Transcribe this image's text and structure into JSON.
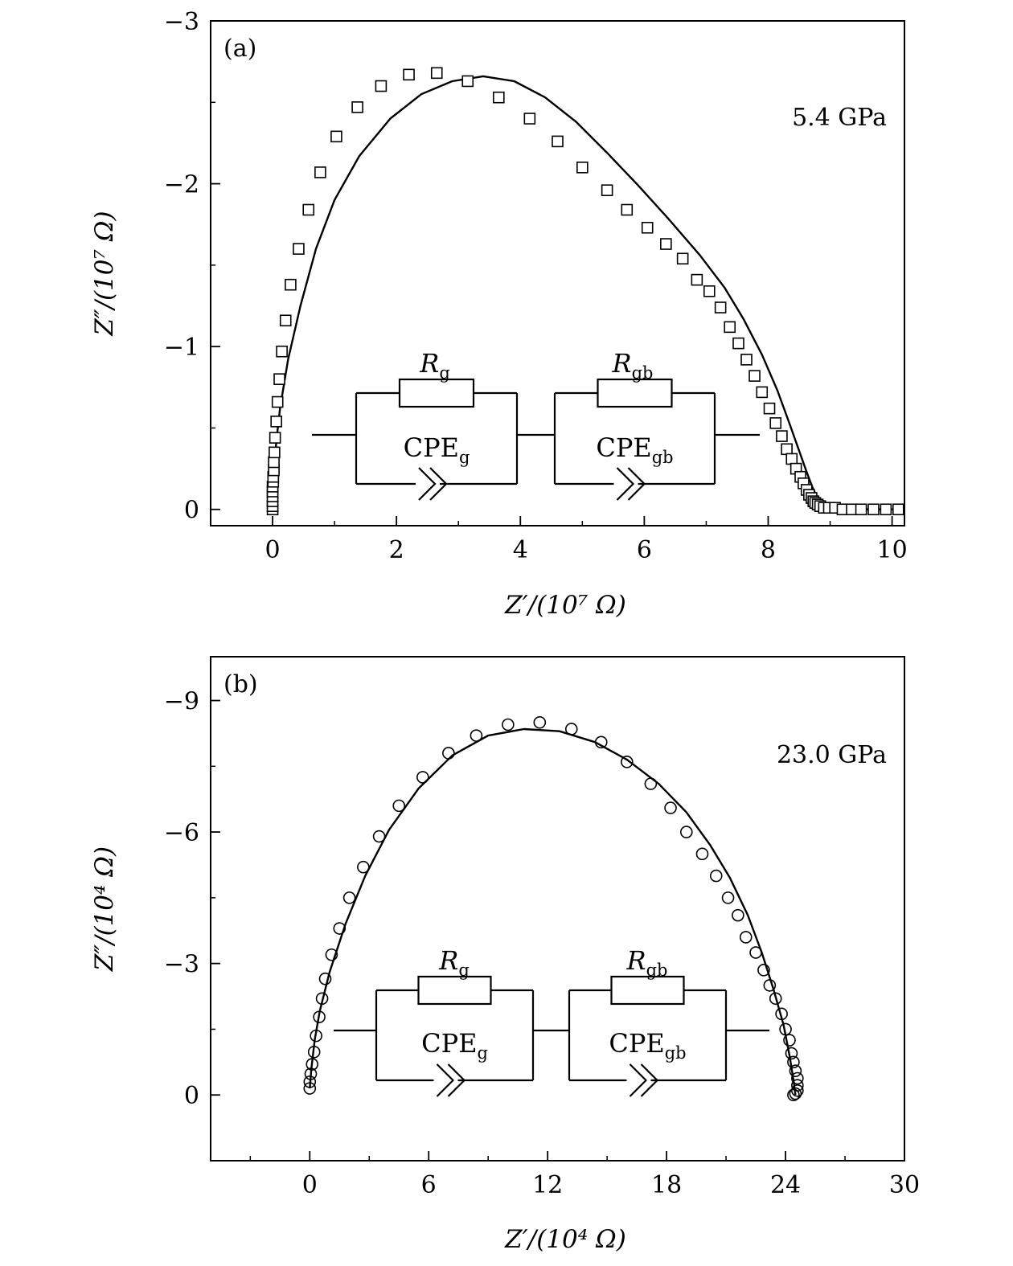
{
  "chart_data": [
    {
      "type": "scatter",
      "panel_label": "(a)",
      "annotation": "5.4 GPa",
      "xlabel": "Z′/(10⁷ Ω)",
      "ylabel": "Z″/(10⁷ Ω)",
      "xlim": [
        -1.0,
        10.2
      ],
      "ylim": [
        0.1,
        -3.0
      ],
      "xticks": [
        0,
        2,
        4,
        6,
        8,
        10
      ],
      "yticks": [
        0,
        -1,
        -2,
        -3
      ],
      "xtick_labels": [
        "0",
        "2",
        "4",
        "6",
        "8",
        "10"
      ],
      "ytick_labels": [
        "0",
        "−1",
        "−2",
        "−3"
      ],
      "marker": "square",
      "series": [
        {
          "kind": "measured",
          "x": [
            0.0,
            0.0,
            0.0,
            0.0,
            0.0,
            0.0,
            0.01,
            0.01,
            0.02,
            0.02,
            0.03,
            0.04,
            0.06,
            0.08,
            0.11,
            0.15,
            0.21,
            0.29,
            0.42,
            0.58,
            0.77,
            1.03,
            1.37,
            1.75,
            2.2,
            2.65,
            3.15,
            3.65,
            4.15,
            4.6,
            5.0,
            5.4,
            5.72,
            6.05,
            6.35,
            6.62,
            6.85,
            7.05,
            7.23,
            7.38,
            7.52,
            7.65,
            7.78,
            7.9,
            8.02,
            8.12,
            8.22,
            8.3,
            8.38,
            8.45,
            8.52,
            8.57,
            8.62,
            8.66,
            8.7,
            8.73,
            8.76,
            8.8,
            8.84,
            8.9,
            8.98,
            9.08,
            9.2,
            9.35,
            9.5,
            9.7,
            9.9,
            10.1
          ],
          "y": [
            0.0,
            -0.02,
            -0.05,
            -0.08,
            -0.11,
            -0.14,
            -0.17,
            -0.2,
            -0.24,
            -0.29,
            -0.35,
            -0.44,
            -0.54,
            -0.66,
            -0.8,
            -0.97,
            -1.16,
            -1.38,
            -1.6,
            -1.84,
            -2.07,
            -2.29,
            -2.47,
            -2.6,
            -2.67,
            -2.68,
            -2.63,
            -2.53,
            -2.4,
            -2.26,
            -2.1,
            -1.96,
            -1.84,
            -1.73,
            -1.63,
            -1.54,
            -1.41,
            -1.34,
            -1.24,
            -1.12,
            -1.02,
            -0.92,
            -0.82,
            -0.72,
            -0.62,
            -0.53,
            -0.45,
            -0.37,
            -0.31,
            -0.25,
            -0.2,
            -0.16,
            -0.12,
            -0.09,
            -0.07,
            -0.05,
            -0.04,
            -0.03,
            -0.02,
            -0.01,
            -0.01,
            -0.01,
            0.0,
            0.0,
            0.0,
            0.0,
            0.0,
            0.0
          ]
        },
        {
          "kind": "fit",
          "x": [
            0.0,
            0.02,
            0.06,
            0.12,
            0.25,
            0.45,
            0.7,
            1.0,
            1.4,
            1.9,
            2.4,
            2.9,
            3.4,
            3.9,
            4.4,
            4.9,
            5.4,
            5.9,
            6.4,
            6.9,
            7.3,
            7.6,
            7.9,
            8.15,
            8.35,
            8.5,
            8.62,
            8.72,
            8.8,
            8.88,
            8.95,
            9.05,
            9.2,
            9.5,
            9.8,
            10.1
          ],
          "y": [
            0.0,
            -0.22,
            -0.42,
            -0.62,
            -0.92,
            -1.25,
            -1.6,
            -1.9,
            -2.17,
            -2.4,
            -2.55,
            -2.63,
            -2.66,
            -2.63,
            -2.53,
            -2.38,
            -2.19,
            -1.99,
            -1.78,
            -1.56,
            -1.36,
            -1.17,
            -0.95,
            -0.73,
            -0.52,
            -0.36,
            -0.23,
            -0.13,
            -0.07,
            -0.03,
            -0.01,
            0.0,
            0.0,
            0.0,
            0.0,
            0.0
          ]
        }
      ],
      "inset_circuit": {
        "elements": [
          {
            "resistor": "R",
            "resistor_sub": "g",
            "cpe": "CPE",
            "cpe_sub": "g"
          },
          {
            "resistor": "R",
            "resistor_sub": "gb",
            "cpe": "CPE",
            "cpe_sub": "gb"
          }
        ]
      }
    },
    {
      "type": "scatter",
      "panel_label": "(b)",
      "annotation": "23.0 GPa",
      "xlabel": "Z′/(10⁴ Ω)",
      "ylabel": "Z″/(10⁴ Ω)",
      "xlim": [
        -5.0,
        30.0
      ],
      "ylim": [
        1.5,
        -10.0
      ],
      "xticks": [
        0,
        6,
        12,
        18,
        24,
        30
      ],
      "yticks": [
        0,
        -3,
        -6,
        -9
      ],
      "xtick_labels": [
        "0",
        "6",
        "12",
        "18",
        "24",
        "30"
      ],
      "ytick_labels": [
        "0",
        "−3",
        "−6",
        "−9"
      ],
      "marker": "circle",
      "series": [
        {
          "kind": "measured",
          "x": [
            0.0,
            0.0,
            0.05,
            0.12,
            0.22,
            0.32,
            0.48,
            0.62,
            0.78,
            1.1,
            1.5,
            2.0,
            2.7,
            3.5,
            4.5,
            5.7,
            7.0,
            8.4,
            10.0,
            11.6,
            13.2,
            14.7,
            16.0,
            17.2,
            18.2,
            19.0,
            19.8,
            20.5,
            21.1,
            21.6,
            22.0,
            22.5,
            22.9,
            23.2,
            23.5,
            23.8,
            24.0,
            24.2,
            24.3,
            24.4,
            24.5,
            24.6,
            24.6,
            24.6,
            24.5,
            24.4
          ],
          "y": [
            -0.15,
            -0.3,
            -0.48,
            -0.7,
            -0.98,
            -1.35,
            -1.78,
            -2.2,
            -2.65,
            -3.2,
            -3.8,
            -4.5,
            -5.2,
            -5.9,
            -6.6,
            -7.25,
            -7.8,
            -8.2,
            -8.45,
            -8.5,
            -8.35,
            -8.05,
            -7.6,
            -7.1,
            -6.55,
            -6.0,
            -5.5,
            -5.0,
            -4.5,
            -4.1,
            -3.6,
            -3.25,
            -2.85,
            -2.5,
            -2.2,
            -1.85,
            -1.5,
            -1.25,
            -0.95,
            -0.75,
            -0.55,
            -0.38,
            -0.22,
            -0.1,
            -0.03,
            0.0
          ]
        },
        {
          "kind": "fit",
          "x": [
            0.0,
            0.08,
            0.25,
            0.5,
            1.0,
            1.8,
            2.8,
            4.0,
            5.5,
            7.2,
            9.0,
            10.8,
            12.6,
            14.4,
            16.0,
            17.6,
            19.0,
            20.2,
            21.2,
            22.1,
            22.8,
            23.4,
            23.9,
            24.2,
            24.4,
            24.5
          ],
          "y": [
            -0.15,
            -0.6,
            -1.25,
            -1.9,
            -2.8,
            -3.9,
            -5.0,
            -6.05,
            -7.0,
            -7.75,
            -8.2,
            -8.35,
            -8.3,
            -8.05,
            -7.65,
            -7.1,
            -6.45,
            -5.7,
            -4.95,
            -4.1,
            -3.25,
            -2.4,
            -1.6,
            -0.9,
            -0.35,
            0.0
          ]
        }
      ],
      "inset_circuit": {
        "elements": [
          {
            "resistor": "R",
            "resistor_sub": "g",
            "cpe": "CPE",
            "cpe_sub": "g"
          },
          {
            "resistor": "R",
            "resistor_sub": "gb",
            "cpe": "CPE",
            "cpe_sub": "gb"
          }
        ]
      }
    }
  ]
}
